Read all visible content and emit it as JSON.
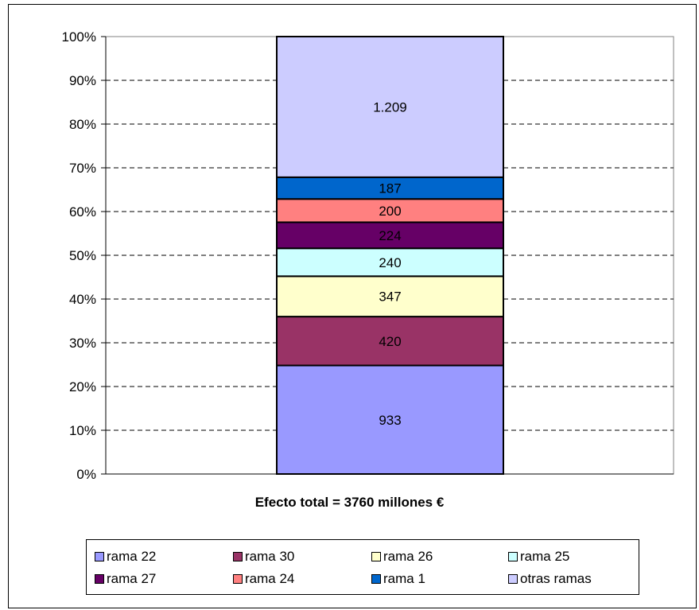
{
  "chart_data": {
    "type": "bar",
    "stacked": true,
    "normalized": true,
    "xlabel": "Efecto total = 3760 millones €",
    "ylim": [
      0,
      100
    ],
    "yticks": [
      "0%",
      "10%",
      "20%",
      "30%",
      "40%",
      "50%",
      "60%",
      "70%",
      "80%",
      "90%",
      "100%"
    ],
    "grid": true,
    "legend_position": "bottom",
    "series": [
      {
        "name": "rama 22",
        "value": 933,
        "label": "933",
        "color": "#9999FF"
      },
      {
        "name": "rama 30",
        "value": 420,
        "label": "420",
        "color": "#993366"
      },
      {
        "name": "rama 26",
        "value": 347,
        "label": "347",
        "color": "#FFFFCC"
      },
      {
        "name": "rama 25",
        "value": 240,
        "label": "240",
        "color": "#CCFFFF"
      },
      {
        "name": "rama 27",
        "value": 224,
        "label": "224",
        "color": "#660066"
      },
      {
        "name": "rama 24",
        "value": 200,
        "label": "200",
        "color": "#FF8080"
      },
      {
        "name": "rama 1",
        "value": 187,
        "label": "187",
        "color": "#0066CC"
      },
      {
        "name": "otras ramas",
        "value": 1209,
        "label": "1.209",
        "color": "#CCCCFF"
      }
    ]
  }
}
